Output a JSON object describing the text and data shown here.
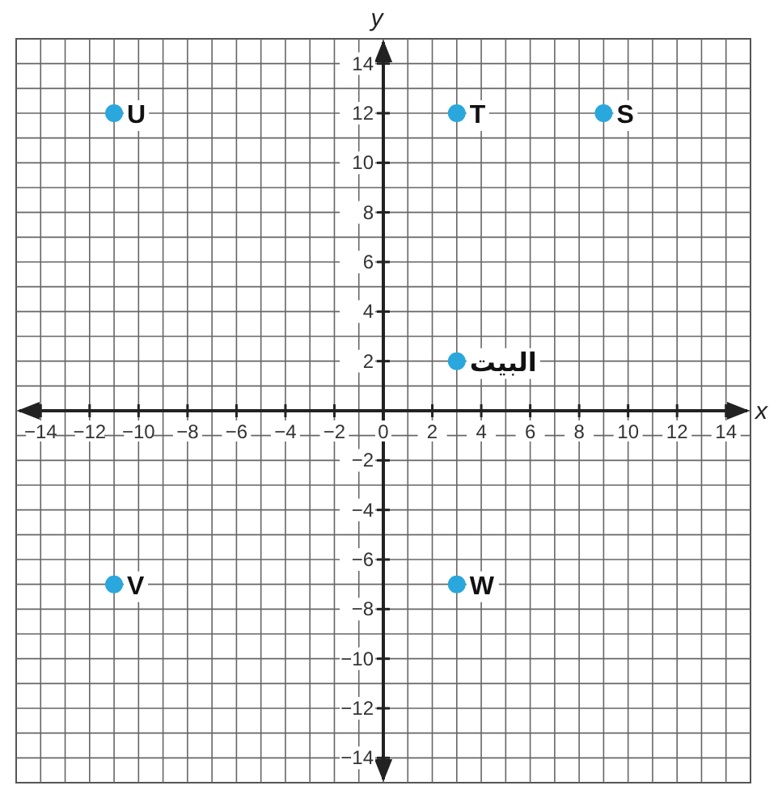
{
  "chart_data": {
    "type": "scatter",
    "xlabel": "x",
    "ylabel": "y",
    "x": [
      -11,
      3,
      9,
      3,
      -11,
      3
    ],
    "values": [
      12,
      12,
      12,
      2,
      -7,
      -7
    ],
    "color": "#2aa7dc",
    "marker": "circle",
    "grid": true,
    "xlim": [
      -15,
      15
    ],
    "ylim": [
      -15,
      15
    ],
    "xticks": [
      -14,
      {
        "value": -13,
        "label": null
      },
      -12,
      {
        "value": -11,
        "label": null
      },
      -10,
      {
        "value": -9,
        "label": null
      },
      -8,
      {
        "value": -7,
        "label": null
      },
      -6,
      {
        "value": -5,
        "label": null
      },
      -4,
      {
        "value": -3,
        "label": null
      },
      -2,
      {
        "value": -1,
        "label": null
      },
      0,
      {
        "value": 1,
        "label": null
      },
      2,
      {
        "value": 3,
        "label": null
      },
      4,
      {
        "value": 5,
        "label": null
      },
      6,
      {
        "value": 7,
        "label": null
      },
      8,
      {
        "value": 9,
        "label": null
      },
      10,
      {
        "value": 11,
        "label": null
      },
      12,
      {
        "value": 13,
        "label": null
      },
      14
    ],
    "yticks": [
      -14,
      {
        "value": -13,
        "label": null
      },
      -12,
      {
        "value": -11,
        "label": null
      },
      -10,
      {
        "value": -9,
        "label": null
      },
      -8,
      {
        "value": -7,
        "label": null
      },
      -6,
      {
        "value": -5,
        "label": null
      },
      -4,
      {
        "value": -3,
        "label": null
      },
      -2,
      {
        "value": -1,
        "label": null
      },
      {
        "value": 0,
        "label": null
      },
      {
        "value": 1,
        "label": null
      },
      2,
      {
        "value": 3,
        "label": null
      },
      4,
      {
        "value": 5,
        "label": null
      },
      6,
      {
        "value": 7,
        "label": null
      },
      8,
      {
        "value": 9,
        "label": null
      },
      10,
      {
        "value": 11,
        "label": null
      },
      12,
      {
        "value": 13,
        "label": null
      },
      14
    ],
    "annotations": [
      {
        "text": "U",
        "x": -11,
        "y": 12
      },
      {
        "text": "T",
        "x": 3,
        "y": 12
      },
      {
        "text": "S",
        "x": 9,
        "y": 12
      },
      {
        "text": "البيت",
        "x": 3,
        "y": 2
      },
      {
        "text": "V",
        "x": -11,
        "y": -7
      },
      {
        "text": "W",
        "x": 3,
        "y": -7
      }
    ]
  }
}
